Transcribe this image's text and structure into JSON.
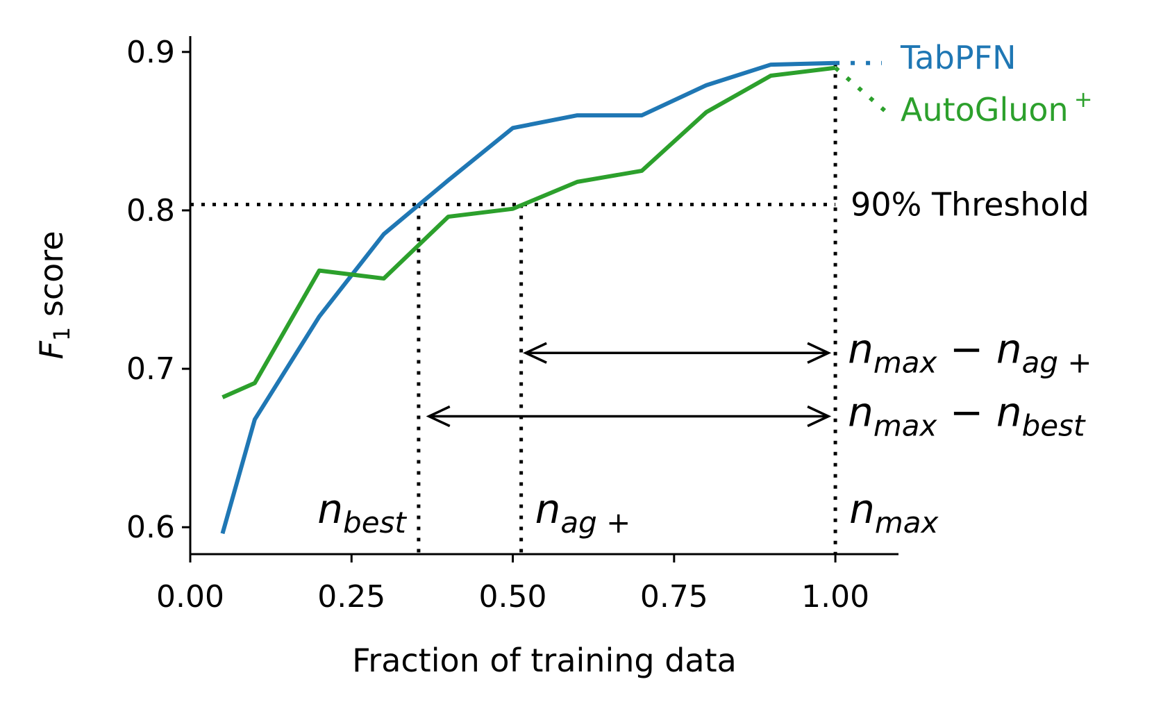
{
  "chart_data": {
    "type": "line",
    "xlabel": "Fraction of training data",
    "ylabel_main": "F",
    "ylabel_sub": "1",
    "ylabel_rest": " score",
    "xlim": [
      0.0,
      1.1
    ],
    "ylim": [
      0.583,
      0.91
    ],
    "xticks": [
      0.0,
      0.25,
      0.5,
      0.75,
      1.0
    ],
    "xtick_labels": [
      "0.00",
      "0.25",
      "0.50",
      "0.75",
      "1.00"
    ],
    "yticks": [
      0.6,
      0.7,
      0.8,
      0.9
    ],
    "ytick_labels": [
      "0.6",
      "0.7",
      "0.8",
      "0.9"
    ],
    "grid": false,
    "legend_position": "right",
    "series": [
      {
        "name": "TabPFN",
        "color": "#1f77b4",
        "x": [
          0.05,
          0.1,
          0.2,
          0.3,
          0.4,
          0.5,
          0.6,
          0.7,
          0.8,
          0.9,
          1.0
        ],
        "y": [
          0.596,
          0.668,
          0.733,
          0.785,
          0.819,
          0.852,
          0.86,
          0.86,
          0.879,
          0.892,
          0.893
        ]
      },
      {
        "name": "AutoGluon",
        "name_sup": "+",
        "color": "#2ca02c",
        "x": [
          0.05,
          0.1,
          0.2,
          0.3,
          0.4,
          0.5,
          0.6,
          0.7,
          0.8,
          0.9,
          1.0
        ],
        "y": [
          0.682,
          0.691,
          0.762,
          0.757,
          0.796,
          0.801,
          0.818,
          0.825,
          0.862,
          0.885,
          0.89
        ]
      }
    ],
    "threshold": {
      "y": 0.8037,
      "label": "90% Threshold"
    },
    "vlines": [
      {
        "x": 0.354,
        "label_main": "n",
        "label_sub": "best"
      },
      {
        "x": 0.513,
        "label_main": "n",
        "label_sub": "ag +"
      },
      {
        "x": 1.0,
        "label_main": "n",
        "label_sub": "max"
      }
    ],
    "arrows": [
      {
        "x_from": 0.52,
        "x_to": 1.0,
        "y": 0.71,
        "label": [
          "n",
          "max",
          " − ",
          "n",
          "ag +"
        ]
      },
      {
        "x_from": 0.37,
        "x_to": 1.0,
        "y": 0.67,
        "label": [
          "n",
          "max",
          " − ",
          "n",
          "best"
        ]
      }
    ]
  }
}
